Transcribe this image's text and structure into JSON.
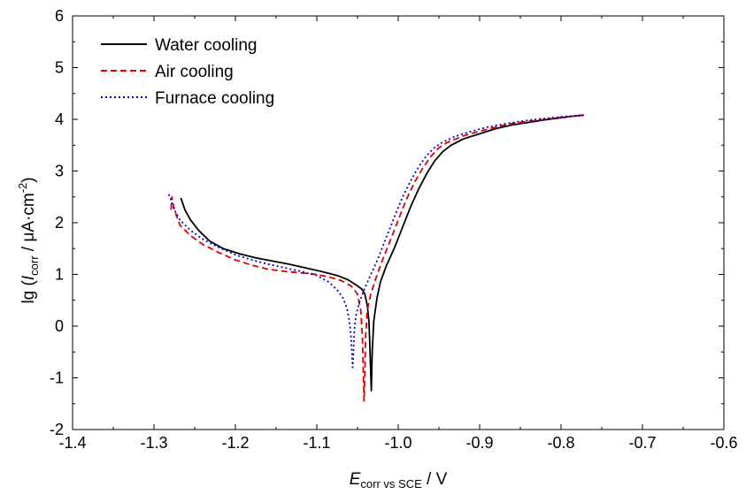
{
  "chart_data": {
    "type": "line",
    "xlabel": {
      "main": "E",
      "sub": "corr vs SCE",
      "unit": " / V"
    },
    "ylabel": {
      "prefix": "lg (",
      "main": "I",
      "sub": "corr",
      "mid": " / μA·cm",
      "sup": "-2",
      "suffix": ")"
    },
    "xlim": [
      -1.4,
      -0.6
    ],
    "ylim": [
      -2,
      6
    ],
    "xticks": [
      -1.4,
      -1.3,
      -1.2,
      -1.1,
      -1.0,
      -0.9,
      -0.8,
      -0.7,
      -0.6
    ],
    "xtick_labels": [
      "-1.4",
      "-1.3",
      "-1.2",
      "-1.1",
      "-1.0",
      "-0.9",
      "-0.8",
      "-0.7",
      "-0.6"
    ],
    "yticks": [
      -2,
      -1,
      0,
      1,
      2,
      3,
      4,
      5,
      6
    ],
    "ytick_labels": [
      "-2",
      "-1",
      "0",
      "1",
      "2",
      "3",
      "4",
      "5",
      "6"
    ],
    "grid": false,
    "legend_position": "top-left",
    "series": [
      {
        "name": "Water cooling",
        "color": "#000000",
        "dash": "solid",
        "x": [
          -1.267,
          -1.262,
          -1.255,
          -1.245,
          -1.232,
          -1.215,
          -1.195,
          -1.175,
          -1.155,
          -1.135,
          -1.115,
          -1.095,
          -1.075,
          -1.062,
          -1.052,
          -1.045,
          -1.041,
          -1.038,
          -1.036,
          -1.035,
          -1.034,
          -1.033,
          -1.032,
          -1.03,
          -1.026,
          -1.022,
          -1.015,
          -1.005,
          -0.995,
          -0.985,
          -0.975,
          -0.965,
          -0.955,
          -0.945,
          -0.935,
          -0.92,
          -0.9,
          -0.88,
          -0.86,
          -0.84,
          -0.82,
          -0.8,
          -0.785,
          -0.772
        ],
        "y": [
          2.48,
          2.25,
          2.05,
          1.85,
          1.65,
          1.5,
          1.4,
          1.32,
          1.26,
          1.2,
          1.13,
          1.06,
          0.98,
          0.9,
          0.8,
          0.72,
          0.62,
          0.4,
          0.1,
          -0.3,
          -0.8,
          -1.25,
          -0.5,
          0.1,
          0.55,
          0.85,
          1.15,
          1.5,
          1.9,
          2.3,
          2.65,
          2.95,
          3.2,
          3.38,
          3.5,
          3.62,
          3.72,
          3.82,
          3.89,
          3.94,
          3.99,
          4.03,
          4.06,
          4.08
        ]
      },
      {
        "name": "Air cooling",
        "color": "#e00000",
        "dash": "dashed",
        "x": [
          -1.279,
          -1.278,
          -1.275,
          -1.268,
          -1.255,
          -1.24,
          -1.22,
          -1.2,
          -1.18,
          -1.16,
          -1.14,
          -1.12,
          -1.1,
          -1.085,
          -1.07,
          -1.058,
          -1.05,
          -1.046,
          -1.044,
          -1.043,
          -1.042,
          -1.041,
          -1.04,
          -1.038,
          -1.034,
          -1.028,
          -1.02,
          -1.01,
          -1.0,
          -0.99,
          -0.98,
          -0.97,
          -0.96,
          -0.95,
          -0.94,
          -0.92,
          -0.9,
          -0.88,
          -0.86,
          -0.84,
          -0.82,
          -0.8,
          -0.785,
          -0.775
        ],
        "y": [
          2.25,
          2.5,
          2.25,
          1.95,
          1.75,
          1.58,
          1.42,
          1.28,
          1.18,
          1.1,
          1.06,
          1.03,
          1.0,
          0.95,
          0.88,
          0.78,
          0.62,
          0.3,
          -0.2,
          -0.8,
          -1.45,
          -0.9,
          -0.2,
          0.3,
          0.6,
          0.9,
          1.25,
          1.65,
          2.05,
          2.45,
          2.78,
          3.05,
          3.28,
          3.45,
          3.55,
          3.68,
          3.77,
          3.85,
          3.92,
          3.96,
          4.0,
          4.04,
          4.06,
          4.08
        ]
      },
      {
        "name": "Furnace cooling",
        "color": "#0000cc",
        "dash": "dotted",
        "x": [
          -1.282,
          -1.28,
          -1.276,
          -1.268,
          -1.255,
          -1.24,
          -1.22,
          -1.2,
          -1.18,
          -1.16,
          -1.14,
          -1.12,
          -1.1,
          -1.085,
          -1.075,
          -1.068,
          -1.063,
          -1.06,
          -1.058,
          -1.057,
          -1.056,
          -1.055,
          -1.054,
          -1.052,
          -1.048,
          -1.042,
          -1.035,
          -1.025,
          -1.015,
          -1.005,
          -0.995,
          -0.985,
          -0.975,
          -0.965,
          -0.955,
          -0.945,
          -0.93,
          -0.91,
          -0.89,
          -0.87,
          -0.85,
          -0.83,
          -0.81,
          -0.79,
          -0.775
        ],
        "y": [
          2.55,
          2.48,
          2.28,
          2.05,
          1.85,
          1.68,
          1.52,
          1.38,
          1.28,
          1.2,
          1.13,
          1.06,
          0.98,
          0.85,
          0.7,
          0.55,
          0.35,
          0.1,
          -0.2,
          -0.5,
          -0.8,
          -0.55,
          -0.1,
          0.2,
          0.45,
          0.7,
          0.95,
          1.3,
          1.7,
          2.1,
          2.48,
          2.8,
          3.08,
          3.3,
          3.46,
          3.56,
          3.67,
          3.77,
          3.85,
          3.91,
          3.96,
          4.0,
          4.03,
          4.06,
          4.08
        ]
      }
    ]
  }
}
